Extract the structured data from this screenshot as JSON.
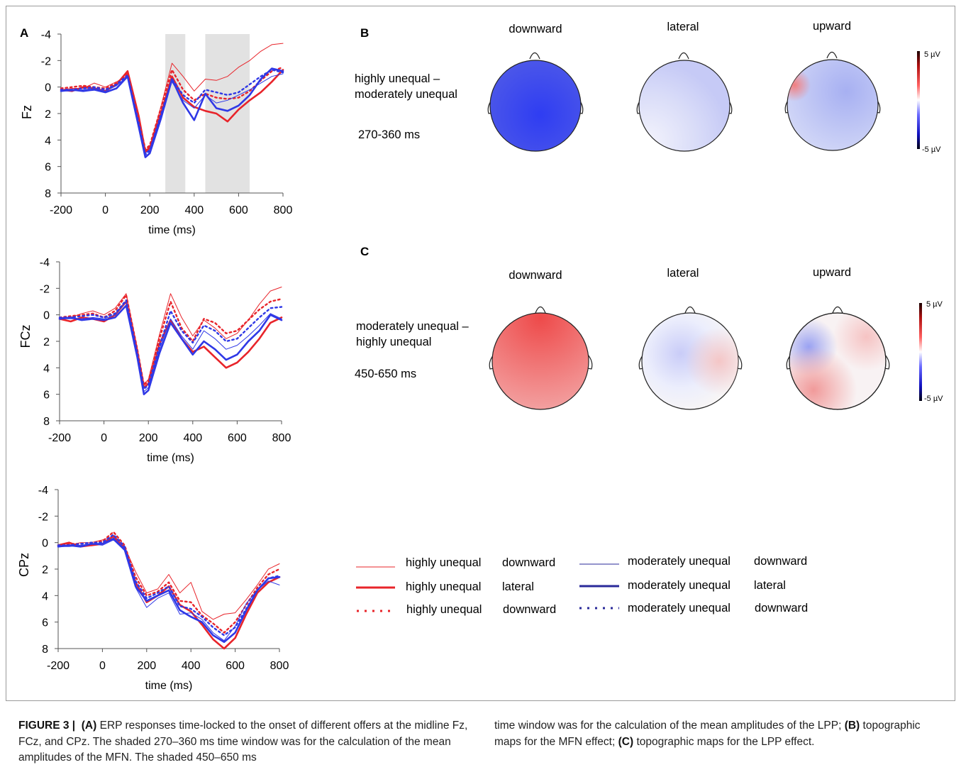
{
  "panel_labels": {
    "A": "A",
    "B": "B",
    "C": "C"
  },
  "erp": {
    "ytick_labels": [
      "-4",
      "-2",
      "0",
      "2",
      "4",
      "6",
      "8"
    ],
    "xtick_labels": [
      "-200",
      "0",
      "200",
      "400",
      "600",
      "800"
    ],
    "xlabel": "time (ms)",
    "shaded_windows_ms": [
      [
        270,
        360
      ],
      [
        450,
        650
      ]
    ]
  },
  "topo": {
    "B": {
      "row_label_1": "highly unequal –",
      "row_label_2": "moderately unequal",
      "window": "270-360 ms",
      "columns": [
        "downward",
        "lateral",
        "upward"
      ]
    },
    "C": {
      "row_label_1": "moderately unequal –",
      "row_label_2": "highly unequal",
      "window": "450-650 ms",
      "columns": [
        "downward",
        "lateral",
        "upward"
      ]
    },
    "colorbar": {
      "max": "5 µV",
      "min": "-5 µV"
    }
  },
  "legend": {
    "entries": [
      {
        "group": "highly unequal",
        "cond": "downward",
        "color": "#e8242a",
        "style": "thin"
      },
      {
        "group": "highly unequal",
        "cond": "lateral",
        "color": "#e8242a",
        "style": "thick"
      },
      {
        "group": "highly unequal",
        "cond": "downward",
        "color": "#e8242a",
        "style": "dotted"
      },
      {
        "group": "moderately unequal",
        "cond": "downward",
        "color": "#2a2a9a",
        "style": "thin"
      },
      {
        "group": "moderately unequal",
        "cond": "lateral",
        "color": "#2a2a9a",
        "style": "thick"
      },
      {
        "group": "moderately unequal",
        "cond": "downward",
        "color": "#2a2a9a",
        "style": "dotted"
      }
    ]
  },
  "chart_data": [
    {
      "type": "line",
      "title": "",
      "ylabel": "Fz",
      "xlabel": "time (ms)",
      "xlim": [
        -200,
        800
      ],
      "ylim": [
        -4,
        8
      ],
      "y_inverted": true,
      "x": [
        -200,
        -150,
        -100,
        -50,
        0,
        50,
        100,
        150,
        180,
        200,
        250,
        300,
        350,
        400,
        450,
        500,
        550,
        600,
        650,
        700,
        750,
        800
      ],
      "series": [
        {
          "name": "highly unequal downward",
          "color": "#e8242a",
          "style": "thin",
          "values": [
            0.2,
            0.1,
            0.1,
            -0.3,
            0.0,
            -0.4,
            -0.8,
            2.5,
            4.8,
            4.5,
            1.5,
            -1.8,
            -0.8,
            0.3,
            -0.6,
            -0.5,
            -0.8,
            -1.5,
            -2.0,
            -2.7,
            -3.2,
            -3.3
          ]
        },
        {
          "name": "highly unequal lateral",
          "color": "#e8242a",
          "style": "thick",
          "values": [
            0.2,
            0.3,
            0.0,
            0.1,
            0.3,
            -0.2,
            -1.2,
            2.2,
            4.9,
            4.6,
            2.0,
            -0.8,
            0.8,
            1.5,
            1.8,
            2.0,
            2.6,
            1.7,
            1.0,
            0.4,
            -0.4,
            -1.3
          ]
        },
        {
          "name": "highly unequal downward",
          "color": "#e8242a",
          "style": "dotted",
          "values": [
            0.1,
            0.0,
            -0.1,
            0.0,
            0.1,
            -0.3,
            -1.0,
            2.4,
            4.7,
            4.4,
            1.6,
            -1.3,
            0.2,
            1.0,
            0.5,
            0.8,
            0.9,
            0.8,
            0.3,
            -0.5,
            -1.2,
            -1.5
          ]
        },
        {
          "name": "moderately unequal downward",
          "color": "#2a2a9a",
          "style": "thin",
          "values": [
            0.3,
            0.3,
            0.2,
            0.1,
            0.3,
            -0.1,
            -0.8,
            2.8,
            5.0,
            4.7,
            2.2,
            -0.4,
            1.0,
            1.6,
            0.6,
            1.2,
            1.0,
            0.6,
            0.2,
            -0.3,
            -0.8,
            -1.0
          ]
        },
        {
          "name": "moderately unequal lateral",
          "color": "#2a2a9a",
          "style": "thick",
          "values": [
            0.3,
            0.2,
            0.3,
            0.2,
            0.4,
            0.1,
            -0.8,
            3.0,
            5.3,
            5.0,
            2.4,
            -0.6,
            1.2,
            2.5,
            0.5,
            1.6,
            1.8,
            1.4,
            0.6,
            -0.6,
            -1.4,
            -1.2
          ]
        },
        {
          "name": "moderately unequal downward",
          "color": "#2a2a9a",
          "style": "dotted",
          "values": [
            0.2,
            0.2,
            0.1,
            0.0,
            0.2,
            -0.2,
            -0.9,
            2.7,
            5.1,
            4.8,
            2.1,
            -0.6,
            0.6,
            1.2,
            0.2,
            0.4,
            0.6,
            0.4,
            -0.2,
            -0.8,
            -1.3,
            -1.1
          ]
        }
      ]
    },
    {
      "type": "line",
      "title": "",
      "ylabel": "FCz",
      "xlabel": "time (ms)",
      "xlim": [
        -200,
        800
      ],
      "ylim": [
        -4,
        8
      ],
      "y_inverted": true,
      "x": [
        -200,
        -150,
        -100,
        -50,
        0,
        50,
        100,
        150,
        180,
        200,
        250,
        300,
        350,
        400,
        450,
        500,
        550,
        600,
        650,
        700,
        750,
        800
      ],
      "series": [
        {
          "name": "highly unequal downward",
          "color": "#e8242a",
          "style": "thin",
          "values": [
            0.2,
            0.2,
            -0.1,
            -0.3,
            0.0,
            -0.5,
            -1.6,
            2.5,
            5.2,
            4.9,
            1.5,
            -1.6,
            0.2,
            1.6,
            0.4,
            1.0,
            1.8,
            1.4,
            0.4,
            -0.8,
            -1.8,
            -2.1
          ]
        },
        {
          "name": "highly unequal lateral",
          "color": "#e8242a",
          "style": "thick",
          "values": [
            0.3,
            0.5,
            0.2,
            0.3,
            0.5,
            0.0,
            -1.0,
            2.8,
            5.5,
            5.2,
            2.2,
            0.4,
            1.8,
            2.8,
            2.4,
            3.2,
            4.0,
            3.6,
            2.8,
            1.8,
            0.6,
            0.2
          ]
        },
        {
          "name": "highly unequal downward",
          "color": "#e8242a",
          "style": "dotted",
          "values": [
            0.2,
            0.1,
            0.0,
            -0.1,
            0.2,
            -0.3,
            -1.5,
            2.6,
            5.3,
            5.0,
            1.8,
            -1.0,
            1.0,
            2.0,
            0.3,
            0.6,
            1.4,
            1.2,
            0.4,
            -0.4,
            -1.0,
            -1.2
          ]
        },
        {
          "name": "moderately unequal downward",
          "color": "#2a2a9a",
          "style": "thin",
          "values": [
            0.3,
            0.3,
            0.3,
            0.2,
            0.3,
            0.0,
            -1.0,
            3.0,
            5.8,
            5.5,
            2.6,
            0.3,
            1.6,
            2.6,
            1.2,
            1.8,
            2.6,
            2.3,
            1.6,
            0.8,
            -0.1,
            0.3
          ]
        },
        {
          "name": "moderately unequal lateral",
          "color": "#2a2a9a",
          "style": "thick",
          "values": [
            0.3,
            0.2,
            0.4,
            0.3,
            0.4,
            0.2,
            -0.7,
            3.2,
            6.0,
            5.7,
            2.9,
            0.6,
            1.8,
            3.0,
            2.0,
            2.6,
            3.4,
            3.0,
            2.0,
            1.2,
            0.0,
            0.4
          ]
        },
        {
          "name": "moderately unequal downward",
          "color": "#2a2a9a",
          "style": "dotted",
          "values": [
            0.2,
            0.2,
            0.1,
            0.0,
            0.2,
            -0.1,
            -1.1,
            2.9,
            5.6,
            5.3,
            2.4,
            -0.3,
            1.2,
            2.1,
            0.8,
            1.2,
            2.0,
            1.8,
            1.0,
            0.2,
            -0.5,
            -0.6
          ]
        }
      ]
    },
    {
      "type": "line",
      "title": "",
      "ylabel": "CPz",
      "xlabel": "time (ms)",
      "xlim": [
        -200,
        800
      ],
      "ylim": [
        -4,
        8
      ],
      "y_inverted": true,
      "x": [
        -200,
        -150,
        -100,
        -50,
        0,
        50,
        100,
        150,
        200,
        250,
        300,
        350,
        400,
        450,
        500,
        550,
        600,
        650,
        700,
        750,
        800
      ],
      "series": [
        {
          "name": "highly unequal downward",
          "color": "#e8242a",
          "style": "thin",
          "values": [
            0.3,
            0.2,
            0.0,
            0.0,
            -0.2,
            -0.4,
            0.3,
            2.2,
            3.8,
            3.5,
            2.4,
            3.8,
            3.0,
            5.2,
            5.8,
            5.4,
            5.3,
            4.3,
            3.2,
            2.0,
            1.6
          ]
        },
        {
          "name": "highly unequal lateral",
          "color": "#e8242a",
          "style": "thick",
          "values": [
            0.2,
            0.0,
            0.3,
            0.2,
            0.1,
            -0.5,
            0.4,
            3.0,
            4.5,
            4.0,
            3.3,
            4.7,
            5.2,
            6.2,
            7.3,
            8.0,
            7.2,
            5.4,
            3.8,
            3.0,
            2.6
          ]
        },
        {
          "name": "highly unequal downward",
          "color": "#e8242a",
          "style": "dotted",
          "values": [
            0.2,
            0.1,
            0.1,
            0.0,
            -0.1,
            -0.8,
            0.2,
            2.6,
            4.0,
            3.7,
            3.0,
            4.4,
            4.5,
            5.5,
            6.1,
            6.8,
            6.0,
            4.7,
            3.4,
            2.4,
            2.0
          ]
        },
        {
          "name": "moderately unequal downward",
          "color": "#2a2a9a",
          "style": "thin",
          "values": [
            0.3,
            0.3,
            0.2,
            0.1,
            0.2,
            -0.2,
            0.6,
            3.4,
            4.9,
            4.2,
            3.8,
            5.4,
            5.3,
            5.8,
            6.8,
            7.4,
            6.3,
            4.6,
            3.6,
            2.9,
            3.2
          ]
        },
        {
          "name": "moderately unequal lateral",
          "color": "#2a2a9a",
          "style": "thick",
          "values": [
            0.3,
            0.2,
            0.3,
            0.1,
            0.1,
            -0.3,
            0.5,
            3.3,
            4.4,
            4.0,
            3.6,
            5.1,
            5.6,
            6.0,
            7.0,
            7.5,
            6.8,
            5.1,
            3.6,
            2.7,
            2.6
          ]
        },
        {
          "name": "moderately unequal downward",
          "color": "#2a2a9a",
          "style": "dotted",
          "values": [
            0.2,
            0.2,
            0.1,
            0.0,
            0.0,
            -0.6,
            0.3,
            2.9,
            4.2,
            3.8,
            3.3,
            4.8,
            5.0,
            5.6,
            6.4,
            7.0,
            6.4,
            5.0,
            3.6,
            2.7,
            2.5
          ]
        }
      ]
    }
  ],
  "caption": {
    "fig": "FIGURE 3 |",
    "a": "(A)",
    "text1": "ERP responses time-locked to the onset of different offers at the midline Fz, FCz, and CPz. The shaded 270–360 ms time window was for the calculation of the mean amplitudes of the MFN. The shaded 450–650 ms",
    "text2": "time window was for the calculation of the mean amplitudes of the LPP;",
    "b": "(B)",
    "text3": "topographic maps for the MFN effect;",
    "c": "(C)",
    "text4": "topographic maps for the LPP effect."
  }
}
